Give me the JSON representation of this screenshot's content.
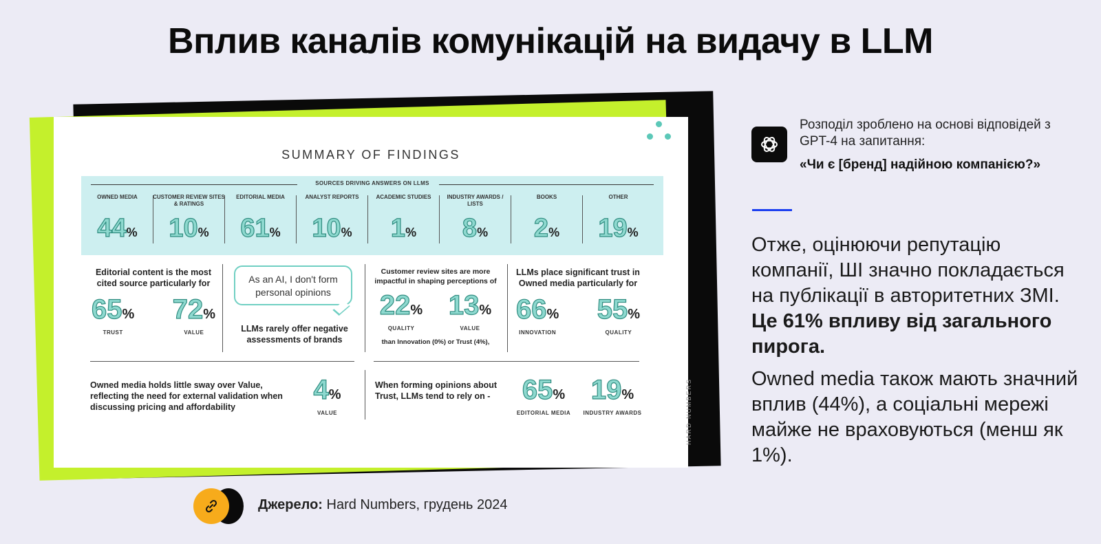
{
  "title": "Вплив каналів комунікацій на видачу в LLM",
  "slide": {
    "heading": "SUMMARY OF FINDINGS",
    "sources_heading": "SOURCES DRIVING ANSWERS ON LLMS",
    "sources": [
      {
        "label": "OWNED MEDIA",
        "value": "44",
        "unit": "%"
      },
      {
        "label": "CUSTOMER REVIEW SITES & RATINGS",
        "value": "10",
        "unit": "%"
      },
      {
        "label": "EDITORIAL MEDIA",
        "value": "61",
        "unit": "%"
      },
      {
        "label": "ANALYST REPORTS",
        "value": "10",
        "unit": "%"
      },
      {
        "label": "ACADEMIC STUDIES",
        "value": "1",
        "unit": "%"
      },
      {
        "label": "INDUSTRY AWARDS / LISTS",
        "value": "8",
        "unit": "%"
      },
      {
        "label": "BOOKS",
        "value": "2",
        "unit": "%"
      },
      {
        "label": "OTHER",
        "value": "19",
        "unit": "%"
      }
    ],
    "finding1": {
      "text": "Editorial content is the most cited source particularly for",
      "stats": [
        {
          "value": "65",
          "unit": "%",
          "label": "TRUST"
        },
        {
          "value": "72",
          "unit": "%",
          "label": "VALUE"
        }
      ]
    },
    "finding2": {
      "bubble": "As an AI, I don't form personal opinions",
      "text": "LLMs rarely offer negative assessments of brands"
    },
    "finding3": {
      "text": "Customer review sites are more impactful in shaping perceptions of",
      "stats": [
        {
          "value": "22",
          "unit": "%",
          "label": "QUALITY"
        },
        {
          "value": "13",
          "unit": "%",
          "label": "VALUE"
        }
      ],
      "footnote": "than Innovation (0%) or Trust (4%),"
    },
    "finding4": {
      "text": "LLMs place significant trust in Owned media particularly for",
      "stats": [
        {
          "value": "66",
          "unit": "%",
          "label": "INNOVATION"
        },
        {
          "value": "55",
          "unit": "%",
          "label": "QUALITY"
        }
      ]
    },
    "finding5": {
      "text": "Owned media holds little sway over Value, reflecting the need for external validation when discussing pricing and affordability",
      "stat": {
        "value": "4",
        "unit": "%",
        "label": "VALUE"
      }
    },
    "finding6": {
      "text": "When forming opinions about Trust, LLMs tend to rely on -",
      "stats": [
        {
          "value": "65",
          "unit": "%",
          "label": "EDITORIAL MEDIA"
        },
        {
          "value": "19",
          "unit": "%",
          "label": "INDUSTRY AWARDS"
        }
      ]
    },
    "brand_vertical": "HARD NUMBERS"
  },
  "side": {
    "caption": "Розподіл зроблено на основі відповідей з GPT-4 на запитання:",
    "question": "«Чи є [бренд] надійною компанією?»",
    "para1_plain": "Отже, оцінюючи репутацію компанії, ШІ значно покладається на публікації в авторитетних ЗМІ.",
    "para1_bold": "Це 61% впливу від загального пирога.",
    "para2": "Owned media також мають значний вплив (44%), а соціальні мережі майже не враховуються (менш як 1%)."
  },
  "source": {
    "label": "Джерело:",
    "text": "Hard Numbers, грудень 2024"
  },
  "colors": {
    "background": "#ecebf5",
    "accent_green": "#c4f02c",
    "teal": "#8ed9cf",
    "accent_blue": "#1a3df0",
    "link_orange": "#f7ab1b"
  },
  "icons": [
    "openai-icon",
    "link-icon"
  ]
}
